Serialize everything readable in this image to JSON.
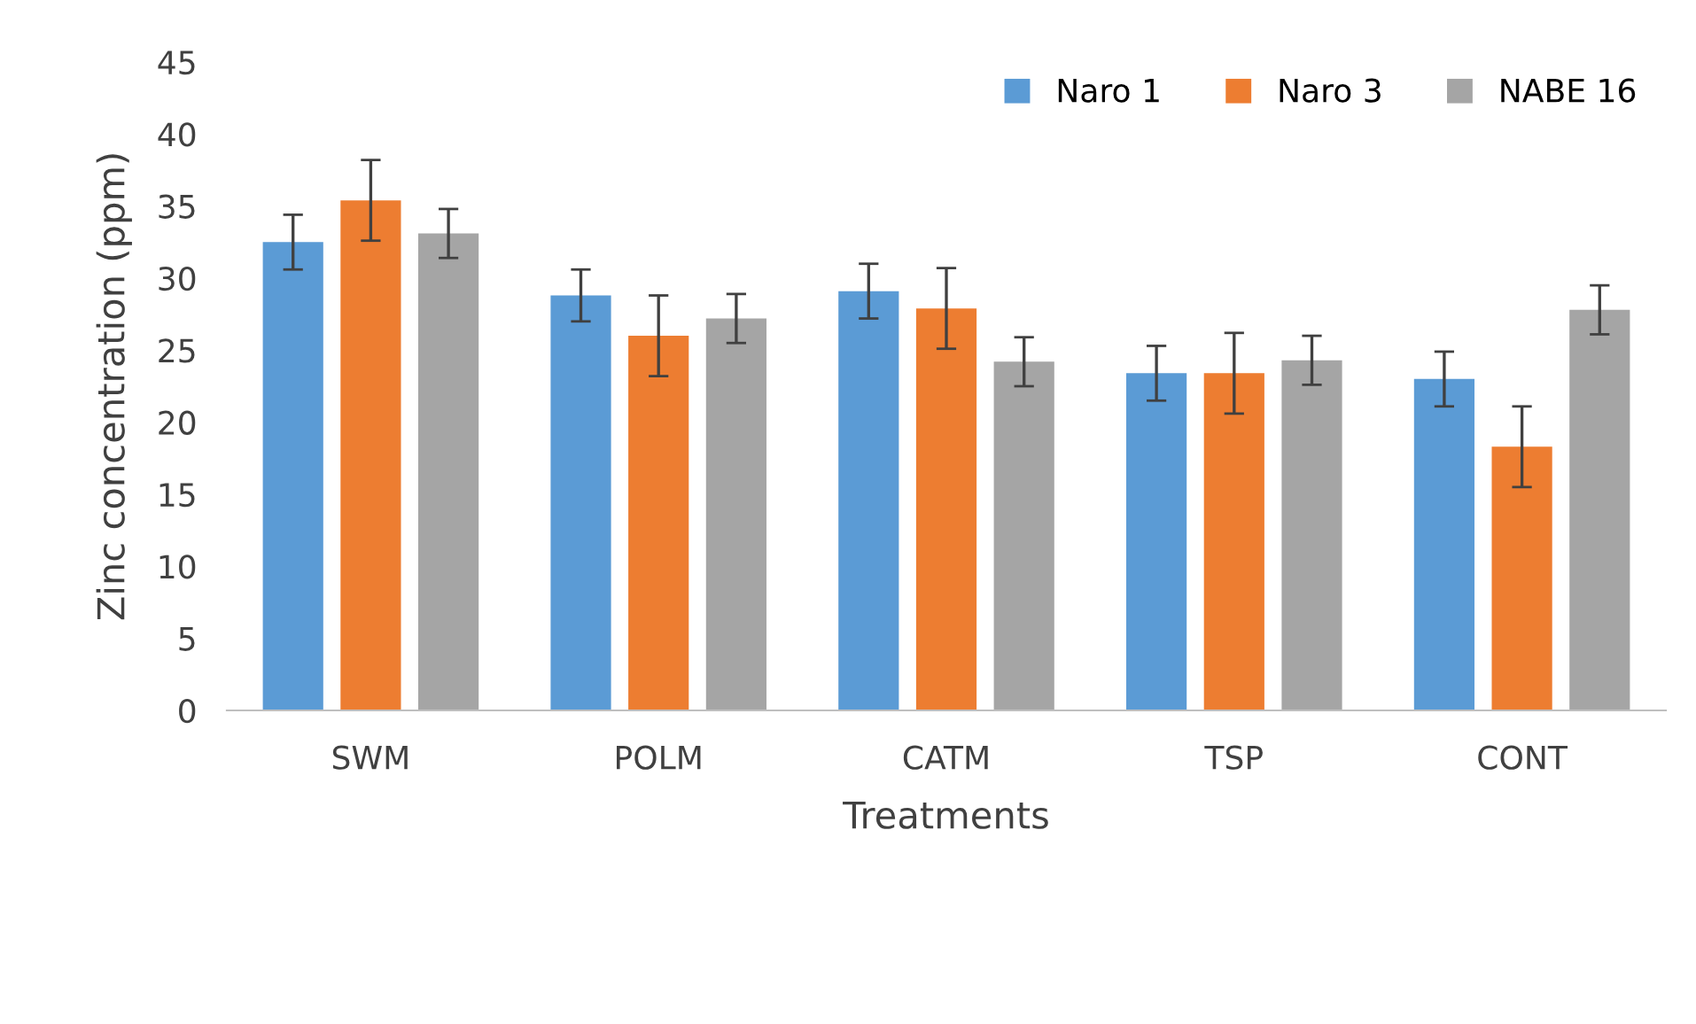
{
  "chart_data": {
    "type": "bar",
    "xlabel": "Treatments",
    "ylabel": "Zinc concentration (ppm)",
    "categories": [
      "SWM",
      "POLM",
      "CATM",
      "TSP",
      "CONT"
    ],
    "series": [
      {
        "name": "Naro 1",
        "color": "#5b9bd5",
        "values": [
          32.5,
          28.8,
          29.1,
          23.4,
          23.0
        ],
        "errors": [
          1.9,
          1.8,
          1.9,
          1.9,
          1.9
        ]
      },
      {
        "name": "Naro 3",
        "color": "#ed7d31",
        "values": [
          35.4,
          26.0,
          27.9,
          23.4,
          18.3
        ],
        "errors": [
          2.8,
          2.8,
          2.8,
          2.8,
          2.8
        ]
      },
      {
        "name": "NABE 16",
        "color": "#a5a5a5",
        "values": [
          33.1,
          27.2,
          24.2,
          24.3,
          27.8
        ],
        "errors": [
          1.7,
          1.7,
          1.7,
          1.7,
          1.7
        ]
      }
    ],
    "ylim": [
      0,
      45
    ],
    "yticks": [
      0,
      5,
      10,
      15,
      20,
      25,
      30,
      35,
      40,
      45
    ],
    "grid": false,
    "legend": "top right"
  }
}
